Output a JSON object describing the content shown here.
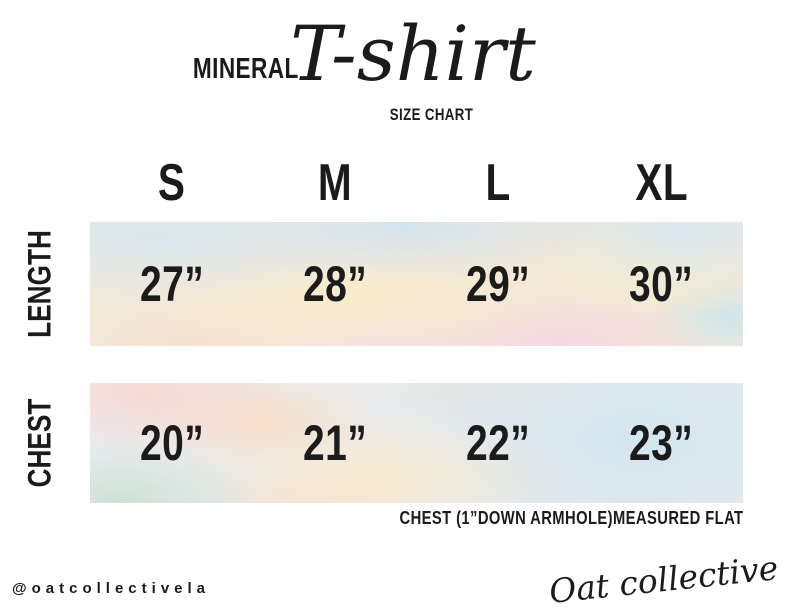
{
  "header": {
    "brand_label": "MINERAL",
    "script_title": "T-shirt",
    "subtitle": "SIZE CHART"
  },
  "size_columns": [
    "S",
    "M",
    "L",
    "XL"
  ],
  "rows": [
    {
      "label": "LENGTH",
      "values": [
        "27”",
        "28”",
        "29”",
        "30”"
      ]
    },
    {
      "label": "CHEST",
      "values": [
        "20”",
        "21”",
        "22”",
        "23”"
      ]
    }
  ],
  "footnote": "CHEST (1”DOWN ARMHOLE)MEASURED FLAT",
  "footer": {
    "handle": "@oatcollectivela",
    "signature": "Oat collective"
  },
  "palette": {
    "text": "#1b1b1b",
    "watercolor_blue": "#d5e6ef",
    "watercolor_cream": "#f9eccd",
    "watercolor_peach": "#f8e2c8",
    "watercolor_pink": "#f6d7e0",
    "watercolor_mint": "#cfe1d7",
    "background": "#ffffff"
  },
  "chart_data": {
    "type": "table",
    "title": "MINERAL T-shirt SIZE CHART",
    "columns": [
      "S",
      "M",
      "L",
      "XL"
    ],
    "rows": [
      {
        "label": "LENGTH",
        "unit": "inches",
        "values": [
          27,
          28,
          29,
          30
        ]
      },
      {
        "label": "CHEST",
        "unit": "inches",
        "values": [
          20,
          21,
          22,
          23
        ]
      }
    ],
    "note": "CHEST (1”DOWN ARMHOLE)MEASURED FLAT",
    "legend_position": "none",
    "grid": false
  }
}
